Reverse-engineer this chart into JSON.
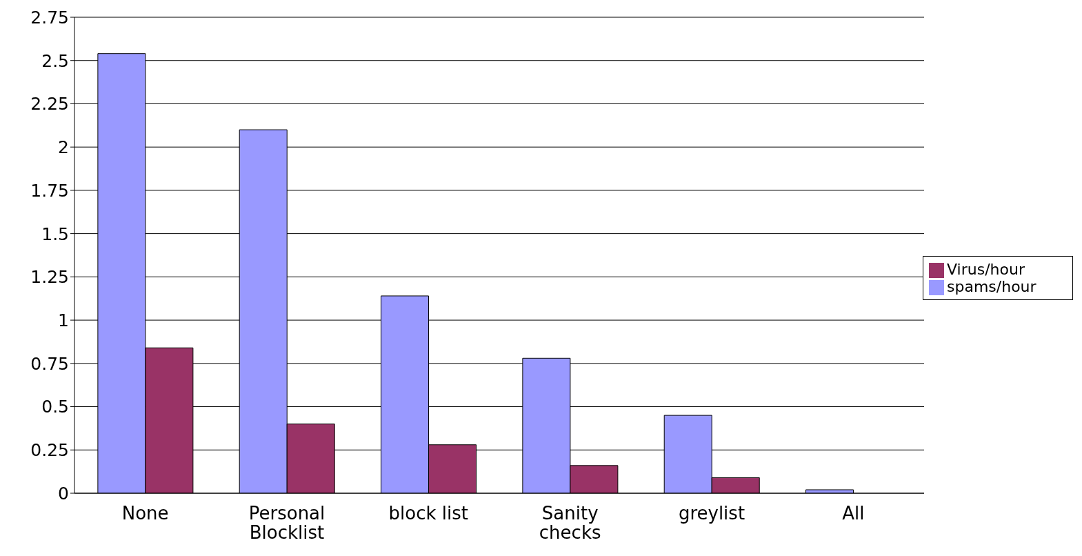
{
  "chart_data": {
    "type": "bar",
    "categories": [
      "None",
      "Personal Blocklist",
      "block list",
      "Sanity checks",
      "greylist",
      "All"
    ],
    "series": [
      {
        "name": "spams/hour",
        "color": "#9999ff",
        "values": [
          2.54,
          2.1,
          1.14,
          0.78,
          0.45,
          0.02
        ]
      },
      {
        "name": "Virus/hour",
        "color": "#993366",
        "values": [
          0.84,
          0.4,
          0.28,
          0.16,
          0.09,
          0
        ]
      }
    ],
    "ylim": [
      0,
      2.75
    ],
    "yticks": [
      0,
      0.25,
      0.5,
      0.75,
      1,
      1.25,
      1.5,
      1.75,
      2,
      2.25,
      2.5,
      2.75
    ],
    "grid": "y",
    "legend": "right"
  }
}
